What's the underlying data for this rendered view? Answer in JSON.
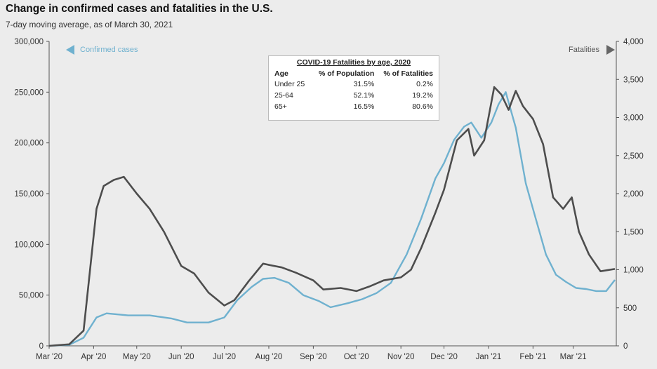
{
  "chart_data": {
    "type": "line",
    "title": "Change in confirmed cases and fatalities in the U.S.",
    "subtitle": "7-day moving average, as of March 30, 2021",
    "x_labels": [
      "Mar '20",
      "Apr '20",
      "May '20",
      "Jun '20",
      "Jul '20",
      "Aug '20",
      "Sep '20",
      "Oct '20",
      "Nov '20",
      "Dec '20",
      "Jan '21",
      "Feb '21",
      "Mar '21"
    ],
    "y_left": {
      "min": 0,
      "max": 300000,
      "ticks": [
        "0",
        "50,000",
        "100,000",
        "150,000",
        "200,000",
        "250,000",
        "300,000"
      ]
    },
    "y_right": {
      "min": 0,
      "max": 4000,
      "ticks": [
        "0",
        "500",
        "1,000",
        "1,500",
        "2,000",
        "2,500",
        "3,000",
        "3,500",
        "4,000"
      ]
    },
    "legend": {
      "left": "Confirmed cases",
      "right": "Fatalities"
    },
    "series": [
      {
        "name": "Confirmed cases",
        "axis": "left",
        "color": "#6fb1cf",
        "x": [
          "2020-03-01",
          "2020-03-15",
          "2020-03-25",
          "2020-04-03",
          "2020-04-10",
          "2020-04-25",
          "2020-05-10",
          "2020-05-25",
          "2020-06-05",
          "2020-06-20",
          "2020-07-01",
          "2020-07-10",
          "2020-07-20",
          "2020-07-28",
          "2020-08-05",
          "2020-08-15",
          "2020-08-25",
          "2020-09-05",
          "2020-09-13",
          "2020-09-25",
          "2020-10-05",
          "2020-10-15",
          "2020-10-25",
          "2020-11-05",
          "2020-11-15",
          "2020-11-25",
          "2020-12-01",
          "2020-12-08",
          "2020-12-15",
          "2020-12-20",
          "2020-12-27",
          "2021-01-03",
          "2021-01-08",
          "2021-01-13",
          "2021-01-20",
          "2021-01-27",
          "2021-02-03",
          "2021-02-10",
          "2021-02-17",
          "2021-02-24",
          "2021-03-03",
          "2021-03-10",
          "2021-03-17",
          "2021-03-24",
          "2021-03-30"
        ],
        "values": [
          0,
          1000,
          8000,
          28000,
          32000,
          30000,
          30000,
          27000,
          23000,
          23000,
          28000,
          45000,
          58000,
          66000,
          67000,
          62000,
          50000,
          44000,
          38000,
          42000,
          46000,
          52000,
          62000,
          90000,
          125000,
          165000,
          180000,
          203000,
          216000,
          220000,
          205000,
          220000,
          238000,
          250000,
          215000,
          160000,
          125000,
          90000,
          70000,
          63000,
          57000,
          56000,
          54000,
          54000,
          65000
        ]
      },
      {
        "name": "Fatalities",
        "axis": "right",
        "color": "#4d4d4d",
        "x": [
          "2020-03-01",
          "2020-03-15",
          "2020-03-25",
          "2020-04-03",
          "2020-04-08",
          "2020-04-15",
          "2020-04-22",
          "2020-05-01",
          "2020-05-10",
          "2020-05-20",
          "2020-06-01",
          "2020-06-10",
          "2020-06-20",
          "2020-07-01",
          "2020-07-08",
          "2020-07-18",
          "2020-07-28",
          "2020-08-02",
          "2020-08-10",
          "2020-08-20",
          "2020-09-01",
          "2020-09-08",
          "2020-09-20",
          "2020-10-01",
          "2020-10-10",
          "2020-10-20",
          "2020-11-01",
          "2020-11-08",
          "2020-11-15",
          "2020-11-25",
          "2020-12-01",
          "2020-12-10",
          "2020-12-18",
          "2020-12-22",
          "2020-12-29",
          "2021-01-05",
          "2021-01-10",
          "2021-01-15",
          "2021-01-20",
          "2021-01-25",
          "2021-02-01",
          "2021-02-08",
          "2021-02-15",
          "2021-02-22",
          "2021-02-28",
          "2021-03-05",
          "2021-03-12",
          "2021-03-20",
          "2021-03-30"
        ],
        "values": [
          0,
          20,
          200,
          1800,
          2100,
          2180,
          2220,
          2000,
          1800,
          1500,
          1050,
          950,
          700,
          530,
          600,
          850,
          1080,
          1060,
          1030,
          960,
          860,
          740,
          760,
          720,
          780,
          860,
          900,
          1000,
          1280,
          1750,
          2050,
          2700,
          2850,
          2500,
          2700,
          3400,
          3300,
          3100,
          3350,
          3150,
          2980,
          2650,
          1950,
          1800,
          1950,
          1500,
          1200,
          980,
          1010
        ]
      }
    ],
    "annotation_table": {
      "title": "COVID-19 Fatalities by age, 2020",
      "columns": [
        "Age",
        "% of Population",
        "% of Fatalities"
      ],
      "rows": [
        [
          "Under 25",
          "31.5%",
          "0.2%"
        ],
        [
          "25-64",
          "52.1%",
          "19.2%"
        ],
        [
          "65+",
          "16.5%",
          "80.6%"
        ]
      ]
    }
  }
}
